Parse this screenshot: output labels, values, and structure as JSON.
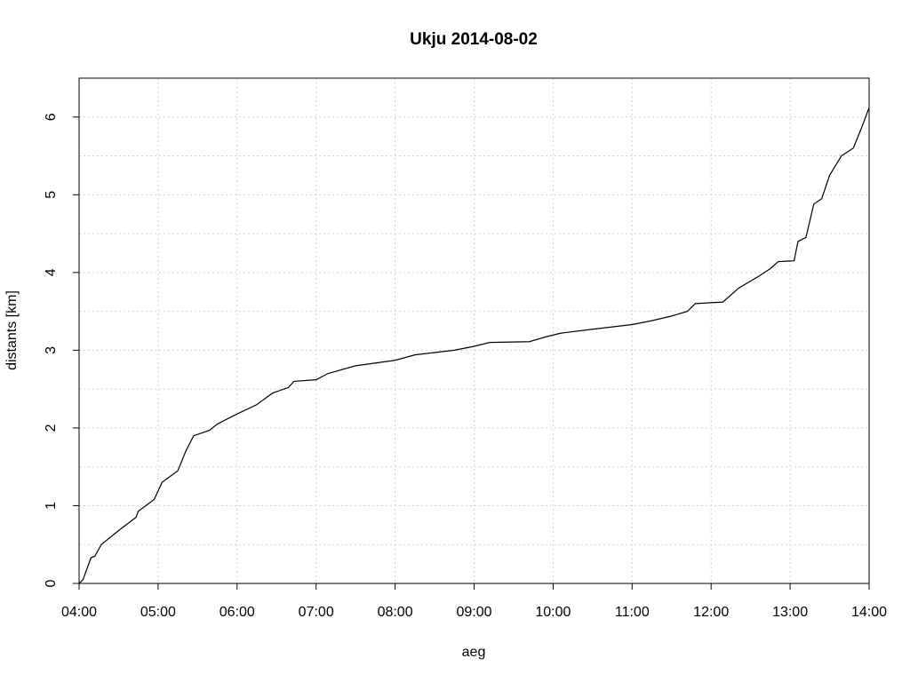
{
  "chart_data": {
    "type": "line",
    "title": "Ukju 2014-08-02",
    "x_label": "aeg",
    "y_label": "distants [km]",
    "x": [
      4.0,
      4.05,
      4.15,
      4.2,
      4.28,
      4.5,
      4.72,
      4.75,
      4.95,
      5.05,
      5.25,
      5.35,
      5.45,
      5.65,
      5.75,
      6.0,
      6.25,
      6.45,
      6.65,
      6.72,
      7.0,
      7.15,
      7.5,
      8.0,
      8.25,
      8.75,
      9.0,
      9.2,
      9.7,
      9.9,
      10.1,
      10.5,
      11.0,
      11.25,
      11.5,
      11.7,
      11.8,
      12.15,
      12.35,
      12.6,
      12.75,
      12.85,
      13.05,
      13.1,
      13.2,
      13.3,
      13.4,
      13.5,
      13.65,
      13.8,
      13.9,
      14.0
    ],
    "series": [
      {
        "color": "#000000",
        "values": [
          0,
          0.05,
          0.33,
          0.35,
          0.5,
          0.68,
          0.85,
          0.93,
          1.08,
          1.3,
          1.45,
          1.7,
          1.9,
          1.97,
          2.05,
          2.18,
          2.3,
          2.45,
          2.52,
          2.6,
          2.62,
          2.7,
          2.8,
          2.87,
          2.94,
          3.0,
          3.05,
          3.1,
          3.11,
          3.17,
          3.22,
          3.27,
          3.33,
          3.38,
          3.44,
          3.5,
          3.6,
          3.62,
          3.8,
          3.95,
          4.05,
          4.14,
          4.15,
          4.4,
          4.45,
          4.88,
          4.95,
          5.25,
          5.5,
          5.6,
          5.85,
          6.12
        ]
      }
    ],
    "xlim": [
      4,
      14
    ],
    "xticks": [
      {
        "value": 4,
        "label": "04:00"
      },
      {
        "value": 5,
        "label": "05:00"
      },
      {
        "value": 6,
        "label": "06:00"
      },
      {
        "value": 7,
        "label": "07:00"
      },
      {
        "value": 8,
        "label": "08:00"
      },
      {
        "value": 9,
        "label": "09:00"
      },
      {
        "value": 10,
        "label": "10:00"
      },
      {
        "value": 11,
        "label": "11:00"
      },
      {
        "value": 12,
        "label": "12:00"
      },
      {
        "value": 13,
        "label": "13:00"
      },
      {
        "value": 14,
        "label": "14:00"
      }
    ],
    "ylim": [
      0,
      6.5
    ],
    "yticks": [
      0,
      1,
      2,
      3,
      4,
      5,
      6
    ],
    "y_minor_grid": [
      0.5,
      1.5,
      2.5,
      3.5,
      4.5,
      5.5
    ],
    "grid": true
  }
}
